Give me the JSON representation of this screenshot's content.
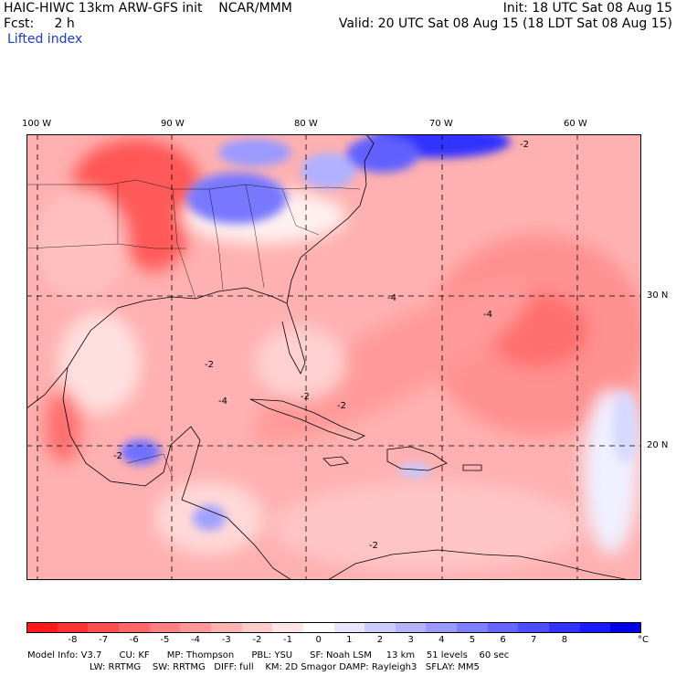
{
  "header": {
    "left_line1": "HAIC-HIWC 13km ARW-GFS init    NCAR/MMM",
    "left_line2": "Fcst:     2 h",
    "field_name": "Lifted index",
    "right_line1": "Init: 18 UTC Sat 08 Aug 15",
    "right_line2": "Valid: 20 UTC Sat 08 Aug 15 (18 LDT Sat 08 Aug 15)"
  },
  "map": {
    "lon_labels": [
      "100 W",
      "90 W",
      "80 W",
      "70 W",
      "60 W"
    ],
    "lat_labels": [
      "30 N",
      "20 N"
    ],
    "contour_label": "-2",
    "contour_label_4": "-4"
  },
  "colorbar": {
    "colors": [
      "#ff1a1a",
      "#ff3333",
      "#ff4d4d",
      "#ff6666",
      "#ff8080",
      "#ff9999",
      "#ffb3b3",
      "#ffcccc",
      "#ffe6e6",
      "#ffffff",
      "#e6e6ff",
      "#ccccff",
      "#b3b3ff",
      "#9999ff",
      "#8080ff",
      "#6666ff",
      "#4d4dff",
      "#3333ff",
      "#1a1aff",
      "#0000e6"
    ],
    "ticks": [
      "-8",
      "-7",
      "-6",
      "-5",
      "-4",
      "-3",
      "-2",
      "-1",
      "0",
      "1",
      "2",
      "3",
      "4",
      "5",
      "6",
      "7",
      "8"
    ],
    "unit": "°C"
  },
  "footer": {
    "line1": "Model Info: V3.7      CU: KF      MP: Thompson      PBL: YSU      SF: Noah LSM     13 km    51 levels    60 sec",
    "line2": "LW: RRTMG    SW: RRTMG   DIFF: full    KM: 2D Smagor DAMP: Rayleigh3   SFLAY: MM5"
  },
  "style": {
    "land_outline": "#000000",
    "grid_color": "#000000",
    "header_blue": "#1a3cc8"
  }
}
